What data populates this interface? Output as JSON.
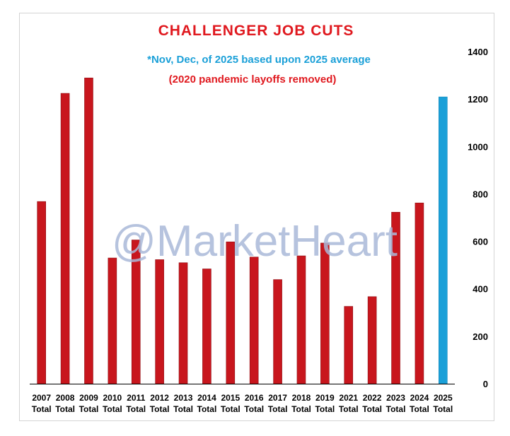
{
  "chart_data": {
    "type": "bar",
    "title": "CHALLENGER JOB CUTS",
    "subtitle_note": "*Nov, Dec, of 2025 based upon 2025 average",
    "subtitle_note2": "(2020 pandemic layoffs removed)",
    "watermark": "@MarketHeart",
    "categories": [
      "2007",
      "2008",
      "2009",
      "2010",
      "2011",
      "2012",
      "2013",
      "2014",
      "2015",
      "2016",
      "2017",
      "2018",
      "2019",
      "2021",
      "2022",
      "2023",
      "2024",
      "2025"
    ],
    "category_sublabel": "Total",
    "values": [
      768,
      1224,
      1289,
      530,
      606,
      523,
      510,
      484,
      598,
      534,
      439,
      539,
      593,
      326,
      367,
      723,
      762,
      1209
    ],
    "highlight_index": 17,
    "colors": {
      "bar": "#c8161d",
      "highlight": "#1ba0d8",
      "title": "#e0191f",
      "note1": "#1ba0d8",
      "note2": "#e0191f",
      "watermark": "#a9b9d8",
      "axis": "#000000"
    },
    "ylim": [
      0,
      1400
    ],
    "yticks": [
      0,
      200,
      400,
      600,
      800,
      1000,
      1200,
      1400
    ],
    "y_axis_side": "right",
    "grid": false,
    "xlabel": "",
    "ylabel": ""
  }
}
